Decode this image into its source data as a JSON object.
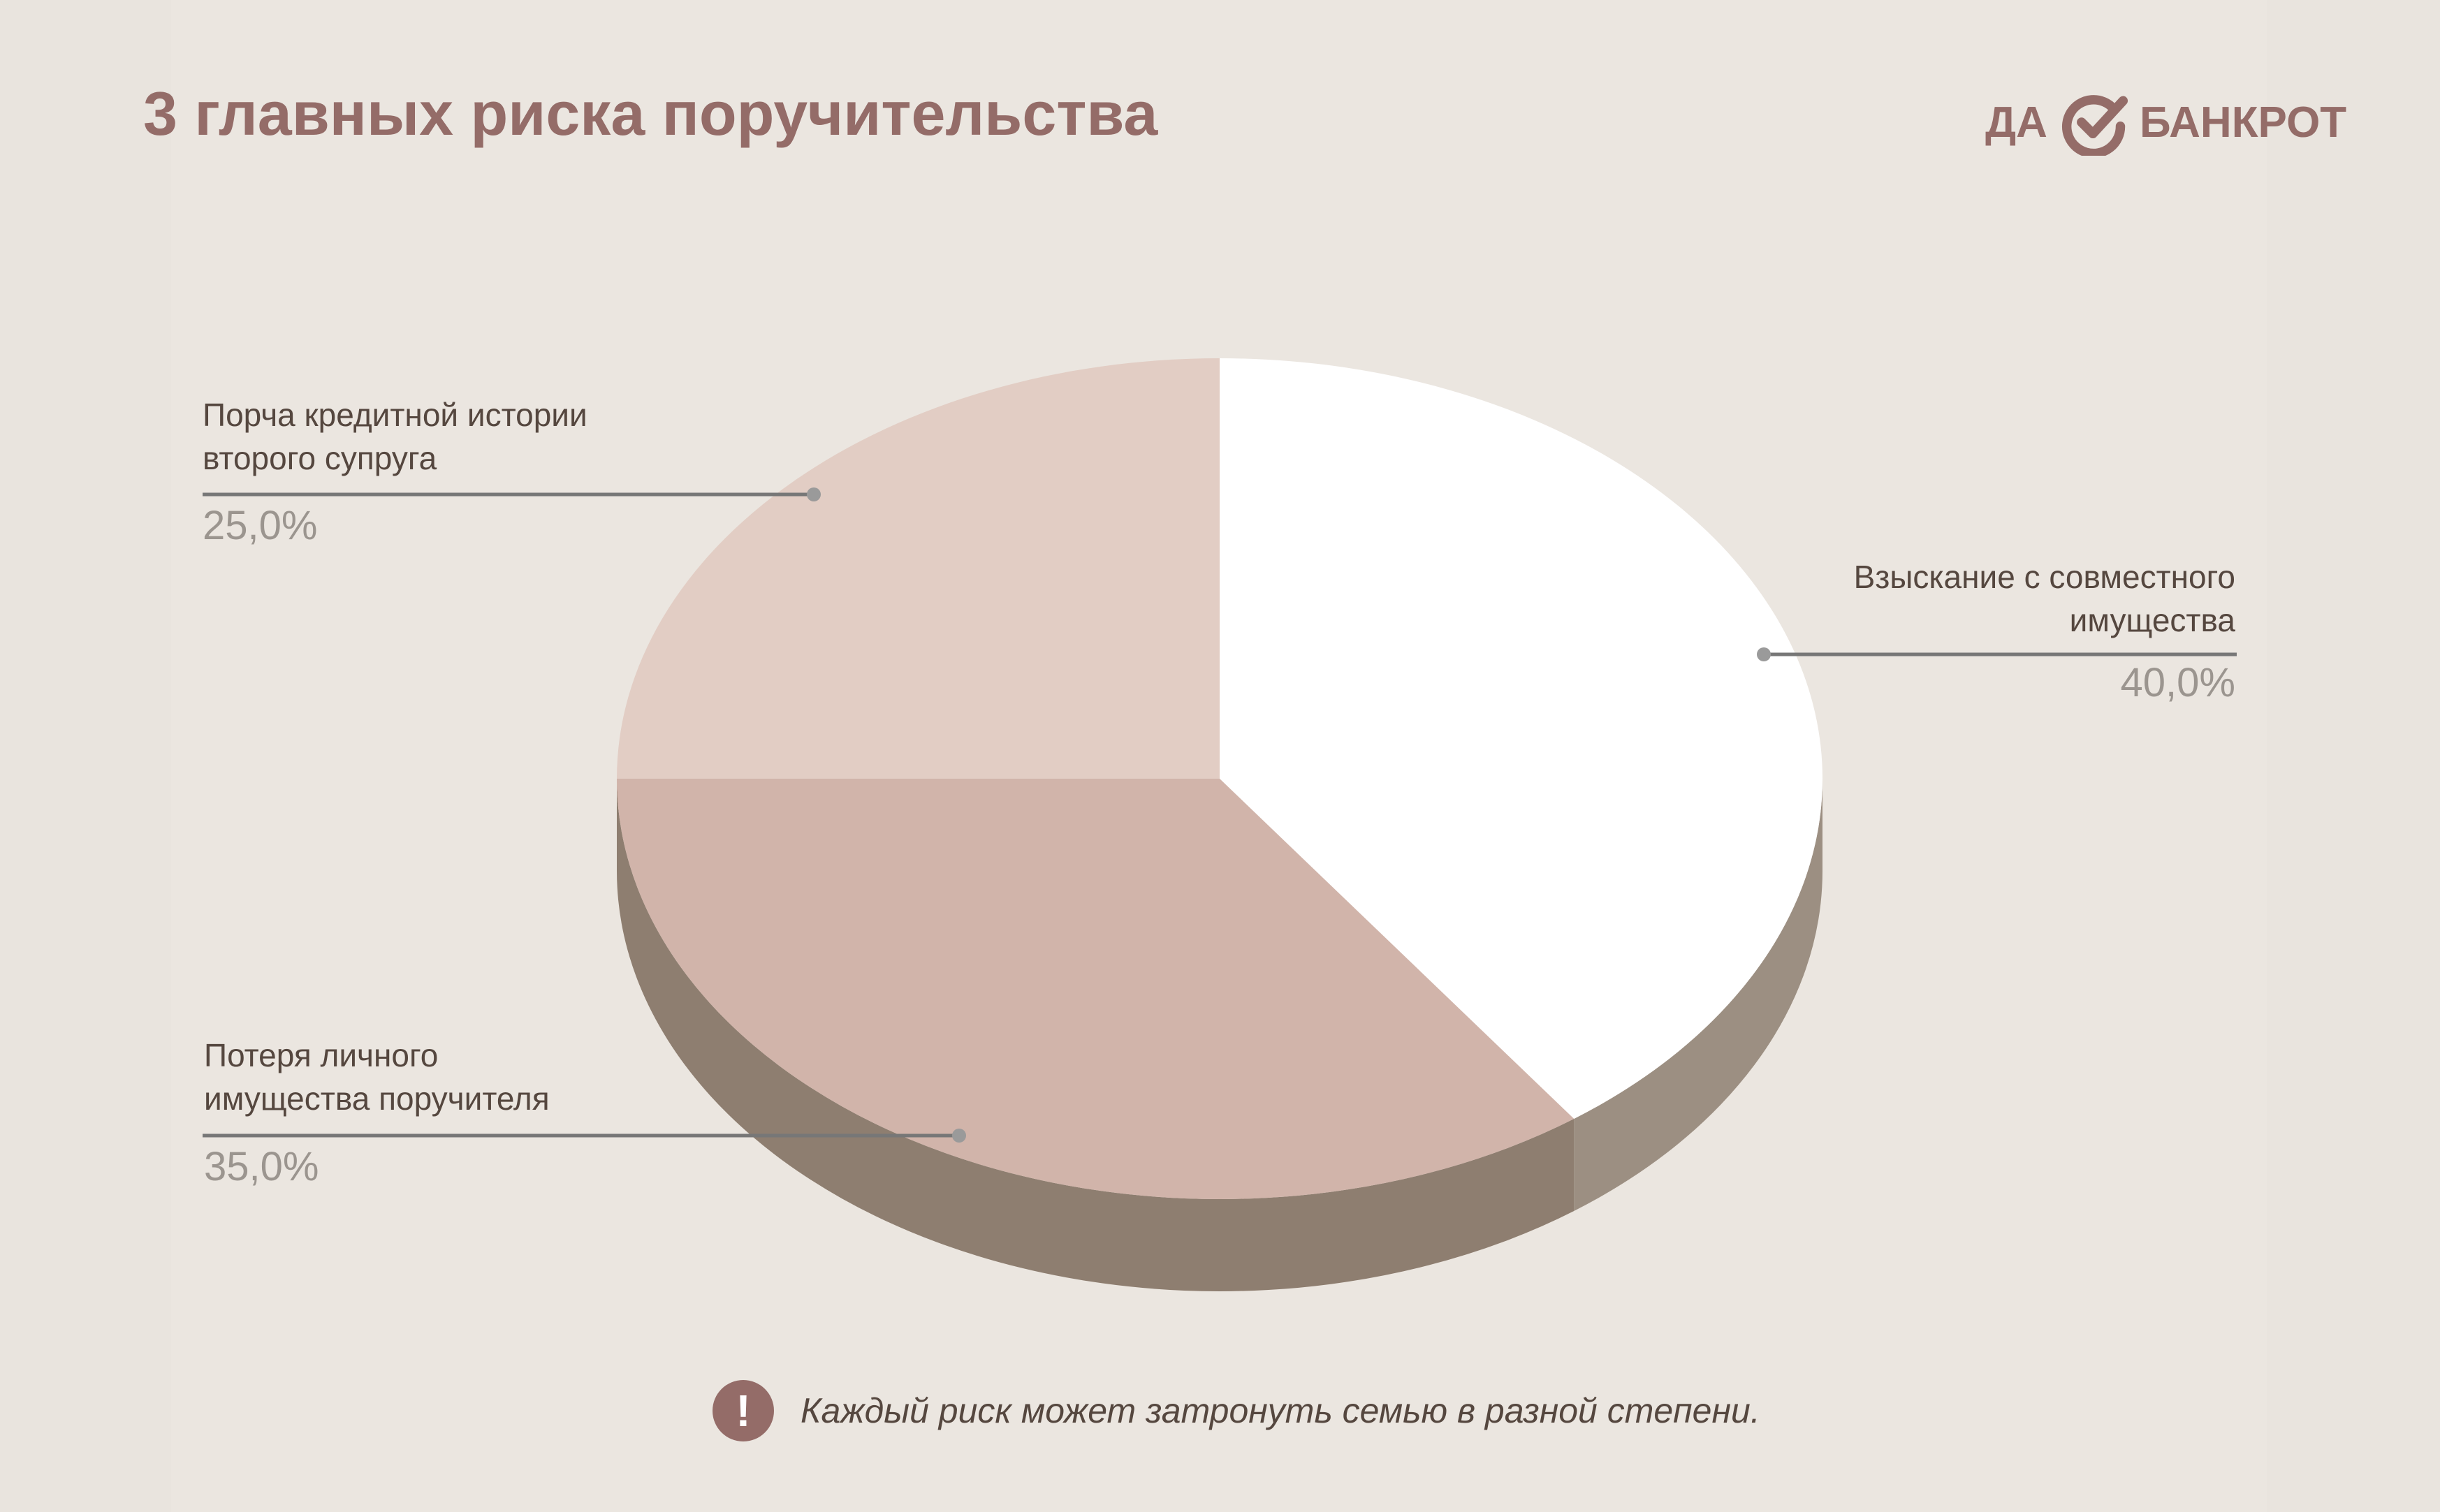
{
  "title": "3 главных риска поручительства",
  "logo": {
    "left_text": "ДА",
    "right_text": "БАНКРОТ",
    "mark_icon": "check-circle-icon"
  },
  "colors": {
    "accent": "#946c68",
    "background": "#e9e4de",
    "slice_top": [
      "#ffffff",
      "#d1b4aa",
      "#e2cdc4"
    ],
    "slice_side": [
      "#9c8f82",
      "#8e7e70",
      "#9b8e81"
    ],
    "leader_line": "#777777",
    "leader_dot": "#9a9a9a"
  },
  "chart_data": {
    "type": "pie",
    "style": "3d",
    "start_angle_deg": -90,
    "direction": "clockwise",
    "slices": [
      {
        "label": "Взыскание с совместного имущества",
        "value": 40.0,
        "value_label": "40,0%"
      },
      {
        "label": "Потеря личного имущества поручителя",
        "value": 35.0,
        "value_label": "35,0%"
      },
      {
        "label": "Порча кредитной истории второго супруга",
        "value": 25.0,
        "value_label": "25,0%"
      }
    ]
  },
  "labels": [
    {
      "lines": [
        "Взыскание с совместного",
        "имущества"
      ],
      "value": "40,0%",
      "align": "right"
    },
    {
      "lines": [
        "Потеря личного",
        "имущества поручителя"
      ],
      "value": "35,0%",
      "align": "left"
    },
    {
      "lines": [
        "Порча кредитной истории",
        "второго супруга"
      ],
      "value": "25,0%",
      "align": "left"
    }
  ],
  "note": {
    "icon": "exclamation-icon",
    "symbol": "!",
    "text": "Каждый риск может затронуть семью в разной степени."
  }
}
